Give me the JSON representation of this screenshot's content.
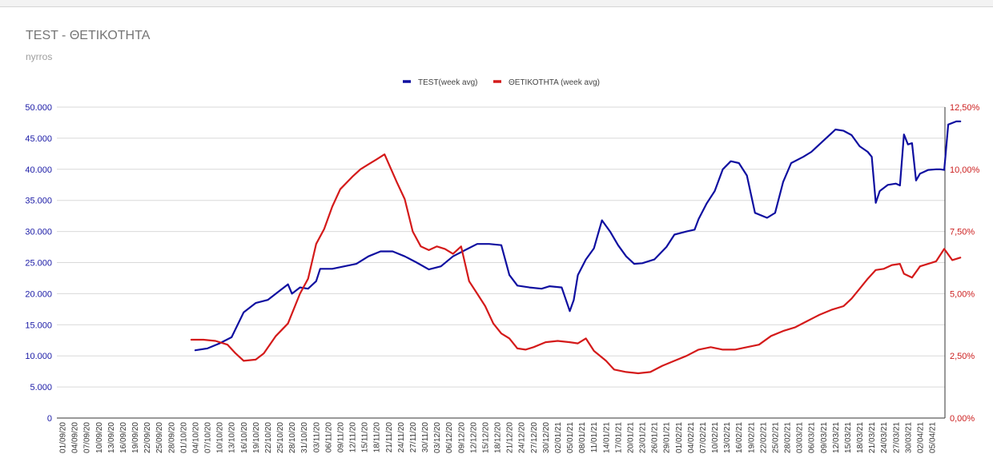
{
  "header": {
    "title": "TEST - ΘΕΤΙΚΟΤΗΤΑ",
    "subtitle": "nyrros"
  },
  "chart_data": {
    "type": "line",
    "title": "TEST - ΘΕΤΙΚΟΤΗΤΑ",
    "subtitle": "nyrros",
    "legend_position": "top-center",
    "grid": true,
    "x_tick_labels": [
      "01/09/20",
      "04/09/20",
      "07/09/20",
      "10/09/20",
      "13/09/20",
      "16/09/20",
      "19/09/20",
      "22/09/20",
      "25/09/20",
      "28/09/20",
      "01/10/20",
      "04/10/20",
      "07/10/20",
      "10/10/20",
      "13/10/20",
      "16/10/20",
      "19/10/20",
      "22/10/20",
      "25/10/20",
      "28/10/20",
      "31/10/20",
      "03/11/20",
      "06/11/20",
      "09/11/20",
      "12/11/20",
      "15/11/20",
      "18/11/20",
      "21/11/20",
      "24/11/20",
      "27/11/20",
      "30/11/20",
      "03/12/20",
      "06/12/20",
      "09/12/20",
      "12/12/20",
      "15/12/20",
      "18/12/20",
      "21/12/20",
      "24/12/20",
      "27/12/20",
      "30/12/20",
      "02/01/21",
      "05/01/21",
      "08/01/21",
      "11/01/21",
      "14/01/21",
      "17/01/21",
      "20/01/21",
      "23/01/21",
      "26/01/21",
      "29/01/21",
      "01/02/21",
      "04/02/21",
      "07/02/21",
      "10/02/21",
      "13/02/21",
      "16/02/21",
      "19/02/21",
      "22/02/21",
      "25/02/21",
      "28/02/21",
      "03/03/21",
      "06/03/21",
      "09/03/21",
      "12/03/21",
      "15/03/21",
      "18/03/21",
      "21/03/21",
      "24/03/21",
      "27/03/21",
      "30/03/21",
      "02/04/21",
      "05/04/21"
    ],
    "y_left": {
      "min": 0,
      "max": 50000,
      "step": 5000,
      "tick_labels": [
        "0",
        "5.000",
        "10.000",
        "15.000",
        "20.000",
        "25.000",
        "30.000",
        "35.000",
        "40.000",
        "45.000",
        "50.000"
      ],
      "color": "#1a1aa6"
    },
    "y_right": {
      "min": 0,
      "max": 12.5,
      "step": 2.5,
      "tick_labels": [
        "0,00%",
        "2,50%",
        "5,00%",
        "7,50%",
        "10,00%",
        "12,50%"
      ],
      "color": "#cc1f1f"
    },
    "series": [
      {
        "name": "TEST(week avg)",
        "axis": "left",
        "color": "#0f0fa0",
        "points": [
          [
            33,
            10900
          ],
          [
            36,
            11200
          ],
          [
            39,
            12000
          ],
          [
            42,
            13000
          ],
          [
            45,
            17000
          ],
          [
            48,
            18500
          ],
          [
            51,
            19000
          ],
          [
            54,
            20500
          ],
          [
            56,
            21500
          ],
          [
            57,
            20000
          ],
          [
            59,
            21000
          ],
          [
            61,
            20800
          ],
          [
            63,
            22000
          ],
          [
            64,
            24000
          ],
          [
            67,
            24000
          ],
          [
            70,
            24400
          ],
          [
            73,
            24800
          ],
          [
            76,
            26000
          ],
          [
            79,
            26800
          ],
          [
            82,
            26800
          ],
          [
            85,
            26000
          ],
          [
            88,
            25000
          ],
          [
            91,
            23900
          ],
          [
            94,
            24400
          ],
          [
            97,
            26000
          ],
          [
            100,
            27000
          ],
          [
            103,
            28000
          ],
          [
            106,
            28000
          ],
          [
            109,
            27800
          ],
          [
            111,
            23000
          ],
          [
            113,
            21300
          ],
          [
            116,
            21000
          ],
          [
            119,
            20800
          ],
          [
            121,
            21200
          ],
          [
            124,
            21000
          ],
          [
            126,
            17200
          ],
          [
            127,
            19000
          ],
          [
            128,
            23000
          ],
          [
            130,
            25500
          ],
          [
            132,
            27300
          ],
          [
            134,
            31800
          ],
          [
            136,
            30000
          ],
          [
            138,
            27800
          ],
          [
            140,
            26000
          ],
          [
            142,
            24800
          ],
          [
            144,
            24900
          ],
          [
            147,
            25500
          ],
          [
            150,
            27500
          ],
          [
            152,
            29500
          ],
          [
            155,
            30000
          ],
          [
            157,
            30300
          ],
          [
            158,
            32000
          ],
          [
            160,
            34500
          ],
          [
            162,
            36500
          ],
          [
            164,
            40000
          ],
          [
            166,
            41300
          ],
          [
            168,
            41000
          ],
          [
            170,
            39000
          ],
          [
            172,
            33000
          ],
          [
            175,
            32200
          ],
          [
            177,
            33000
          ],
          [
            179,
            38000
          ],
          [
            181,
            41000
          ],
          [
            184,
            42000
          ],
          [
            186,
            42800
          ],
          [
            188,
            44000
          ],
          [
            191,
            45800
          ],
          [
            192,
            46400
          ],
          [
            194,
            46200
          ],
          [
            196,
            45500
          ],
          [
            198,
            43700
          ],
          [
            200,
            42800
          ],
          [
            201,
            42000
          ],
          [
            202,
            34600
          ],
          [
            203,
            36500
          ],
          [
            205,
            37500
          ],
          [
            207,
            37700
          ],
          [
            208,
            37400
          ],
          [
            209,
            45600
          ],
          [
            210,
            44000
          ],
          [
            211,
            44200
          ],
          [
            212,
            38200
          ],
          [
            213,
            39300
          ],
          [
            215,
            39900
          ],
          [
            217,
            40000
          ],
          [
            218,
            40000
          ],
          [
            219,
            39900
          ],
          [
            220,
            47200
          ],
          [
            222,
            47700
          ],
          [
            223,
            47700
          ]
        ]
      },
      {
        "name": "ΘΕΤΙΚΟΤΗΤΑ (week avg)",
        "axis": "right",
        "color": "#d41a1a",
        "points": [
          [
            32,
            3.15
          ],
          [
            35,
            3.15
          ],
          [
            38,
            3.1
          ],
          [
            41,
            2.95
          ],
          [
            43,
            2.6
          ],
          [
            45,
            2.3
          ],
          [
            48,
            2.35
          ],
          [
            50,
            2.6
          ],
          [
            53,
            3.3
          ],
          [
            56,
            3.8
          ],
          [
            59,
            5.0
          ],
          [
            61,
            5.6
          ],
          [
            63,
            7.0
          ],
          [
            65,
            7.6
          ],
          [
            67,
            8.5
          ],
          [
            69,
            9.2
          ],
          [
            72,
            9.7
          ],
          [
            74,
            10.0
          ],
          [
            76,
            10.2
          ],
          [
            78,
            10.4
          ],
          [
            80,
            10.6
          ],
          [
            83,
            9.5
          ],
          [
            85,
            8.8
          ],
          [
            87,
            7.5
          ],
          [
            89,
            6.9
          ],
          [
            91,
            6.75
          ],
          [
            93,
            6.9
          ],
          [
            95,
            6.8
          ],
          [
            97,
            6.6
          ],
          [
            99,
            6.9
          ],
          [
            101,
            5.5
          ],
          [
            103,
            5.0
          ],
          [
            105,
            4.5
          ],
          [
            107,
            3.8
          ],
          [
            109,
            3.4
          ],
          [
            111,
            3.2
          ],
          [
            113,
            2.8
          ],
          [
            115,
            2.75
          ],
          [
            117,
            2.85
          ],
          [
            120,
            3.05
          ],
          [
            123,
            3.1
          ],
          [
            126,
            3.05
          ],
          [
            128,
            3.0
          ],
          [
            130,
            3.2
          ],
          [
            132,
            2.7
          ],
          [
            135,
            2.3
          ],
          [
            137,
            1.95
          ],
          [
            140,
            1.85
          ],
          [
            143,
            1.8
          ],
          [
            146,
            1.85
          ],
          [
            149,
            2.1
          ],
          [
            152,
            2.3
          ],
          [
            155,
            2.5
          ],
          [
            158,
            2.75
          ],
          [
            161,
            2.85
          ],
          [
            164,
            2.75
          ],
          [
            167,
            2.75
          ],
          [
            170,
            2.85
          ],
          [
            173,
            2.95
          ],
          [
            176,
            3.3
          ],
          [
            179,
            3.5
          ],
          [
            182,
            3.65
          ],
          [
            185,
            3.9
          ],
          [
            188,
            4.15
          ],
          [
            191,
            4.35
          ],
          [
            194,
            4.5
          ],
          [
            196,
            4.8
          ],
          [
            198,
            5.2
          ],
          [
            200,
            5.6
          ],
          [
            202,
            5.95
          ],
          [
            204,
            6.0
          ],
          [
            206,
            6.15
          ],
          [
            208,
            6.2
          ],
          [
            209,
            5.8
          ],
          [
            211,
            5.65
          ],
          [
            213,
            6.1
          ],
          [
            215,
            6.2
          ],
          [
            217,
            6.3
          ],
          [
            219,
            6.8
          ],
          [
            221,
            6.35
          ],
          [
            223,
            6.45
          ]
        ]
      }
    ]
  }
}
